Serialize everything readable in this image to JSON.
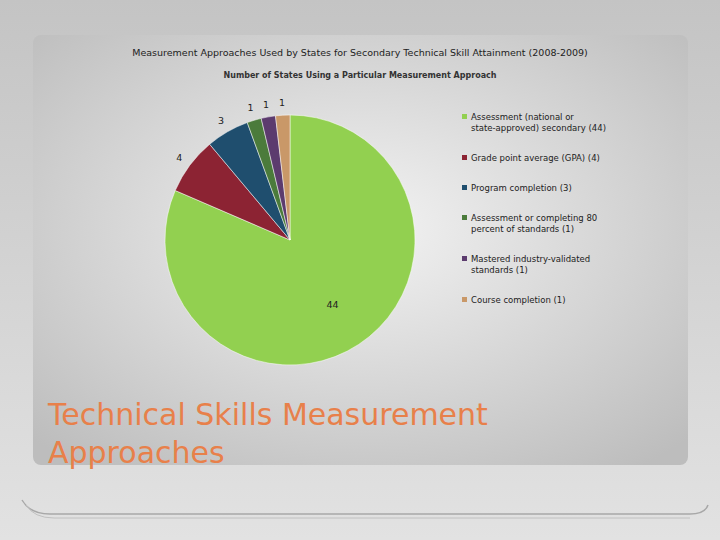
{
  "chart_data": {
    "type": "pie",
    "title": "Measurement Approaches Used by States for Secondary Technical Skill Attainment (2008-2009)",
    "subtitle": "Number of States Using a Particular Measurement Approach",
    "categories": [
      "Assessment (national or state-approved) secondary (44)",
      "Grade point average (GPA) (4)",
      "Program completion (3)",
      "Assessment or completing 80 percent of standards (1)",
      "Mastered industry-validated standards (1)",
      "Course completion (1)"
    ],
    "values": [
      44,
      4,
      3,
      1,
      1,
      1
    ],
    "colors": [
      "#92d050",
      "#8c2333",
      "#1f4e6e",
      "#4b7b3b",
      "#5c3b6e",
      "#c99868"
    ],
    "data_labels": true,
    "legend": "right"
  },
  "slide": {
    "title": "Technical Skills Measurement Approaches"
  }
}
